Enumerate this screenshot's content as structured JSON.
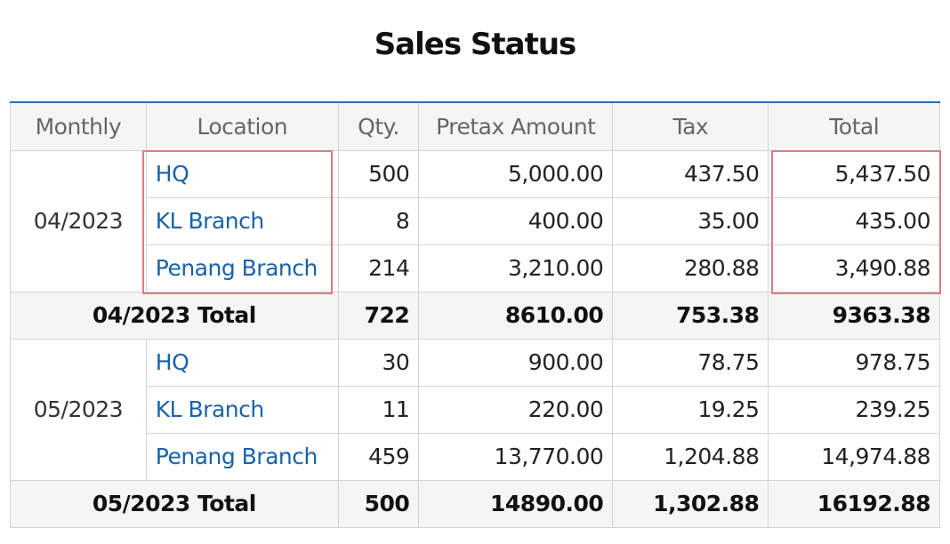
{
  "title": "Sales Status",
  "columns": [
    "Monthly",
    "Location",
    "Qty.",
    "Pretax Amount",
    "Tax",
    "Total"
  ],
  "groups": [
    {
      "month": "04/2023",
      "rows": [
        {
          "location": "HQ",
          "qty": "500",
          "pretax": "5,000.00",
          "tax": "437.50",
          "total": "5,437.50"
        },
        {
          "location": "KL Branch",
          "qty": "8",
          "pretax": "400.00",
          "tax": "35.00",
          "total": "435.00"
        },
        {
          "location": "Penang Branch",
          "qty": "214",
          "pretax": "3,210.00",
          "tax": "280.88",
          "total": "3,490.88"
        }
      ],
      "total": {
        "label": "04/2023 Total",
        "qty": "722",
        "pretax": "8610.00",
        "tax": "753.38",
        "total": "9363.38"
      }
    },
    {
      "month": "05/2023",
      "rows": [
        {
          "location": "HQ",
          "qty": "30",
          "pretax": "900.00",
          "tax": "78.75",
          "total": "978.75"
        },
        {
          "location": "KL Branch",
          "qty": "11",
          "pretax": "220.00",
          "tax": "19.25",
          "total": "239.25"
        },
        {
          "location": "Penang Branch",
          "qty": "459",
          "pretax": "13,770.00",
          "tax": "1,204.88",
          "total": "14,974.88"
        }
      ],
      "total": {
        "label": "05/2023 Total",
        "qty": "500",
        "pretax": "14890.00",
        "tax": "1,302.88",
        "total": "16192.88"
      }
    }
  ],
  "highlight_color": "#e07a85",
  "link_color": "#1a62a8",
  "header_border_color": "#2e6db0"
}
